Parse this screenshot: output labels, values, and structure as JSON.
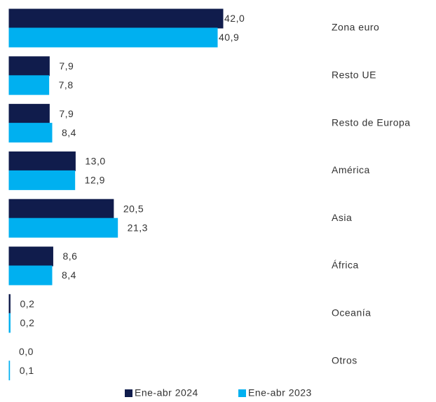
{
  "chart_data": {
    "type": "bar",
    "orientation": "horizontal",
    "categories": [
      "Zona euro",
      "Resto UE",
      "Resto de Europa",
      "América",
      "Asia",
      "África",
      "Oceanía",
      "Otros"
    ],
    "series": [
      {
        "name": "Ene-abr 2024",
        "color": "#101c4c",
        "values": [
          42.0,
          7.9,
          7.9,
          13.0,
          20.5,
          8.6,
          0.2,
          0.0
        ],
        "value_labels": [
          "42,0",
          "7,9",
          "7,9",
          "13,0",
          "20,5",
          "8,6",
          "0,2",
          "0,0"
        ]
      },
      {
        "name": "Ene-abr 2023",
        "color": "#00b0f0",
        "values": [
          40.9,
          7.8,
          8.4,
          12.9,
          21.3,
          8.4,
          0.2,
          0.1
        ],
        "value_labels": [
          "40,9",
          "7,8",
          "8,4",
          "12,9",
          "21,3",
          "8,4",
          "0,2",
          "0,1"
        ]
      }
    ],
    "legend": "bottom"
  }
}
